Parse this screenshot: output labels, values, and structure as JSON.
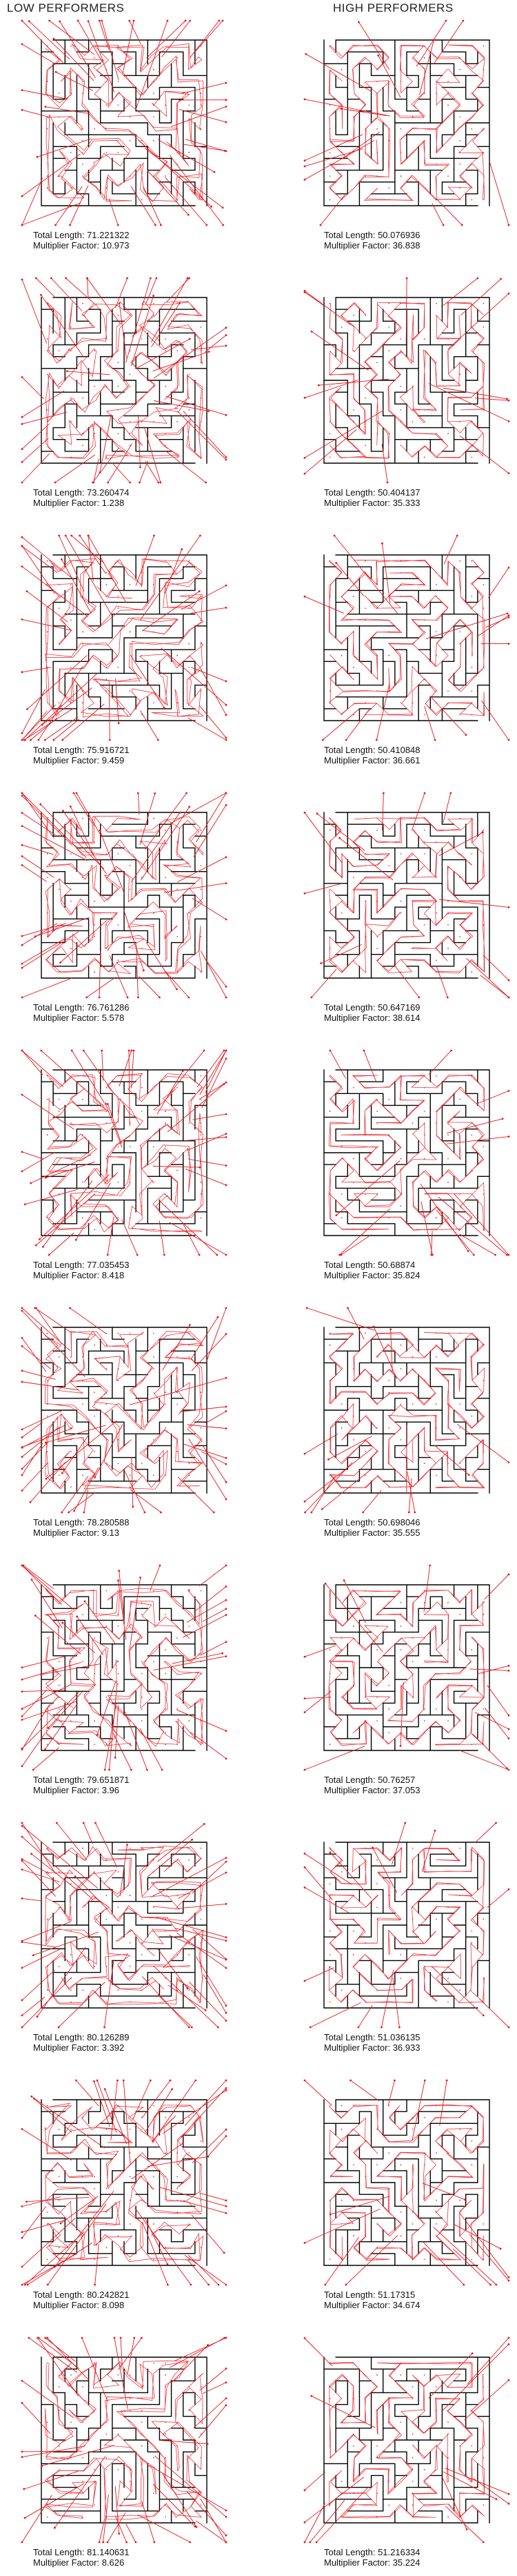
{
  "headers": {
    "low": "LOW PERFORMERS",
    "high": "HIGH PERFORMERS"
  },
  "label_prefixes": {
    "length": "Total Length: ",
    "multiplier": "Multiplier Factor: "
  },
  "colors": {
    "wall": "#000000",
    "path": "#e8141b",
    "arrow": "#e8141b"
  },
  "low_performers": [
    {
      "total_length": "71.221322",
      "multiplier_factor": "10.973"
    },
    {
      "total_length": "73.260474",
      "multiplier_factor": "1.238"
    },
    {
      "total_length": "75.916721",
      "multiplier_factor": "9.459"
    },
    {
      "total_length": "76.761286",
      "multiplier_factor": "5.578"
    },
    {
      "total_length": "77.035453",
      "multiplier_factor": "8.418"
    },
    {
      "total_length": "78.280588",
      "multiplier_factor": "9.13"
    },
    {
      "total_length": "79.651871",
      "multiplier_factor": "3.96"
    },
    {
      "total_length": "80.126289",
      "multiplier_factor": "3.392"
    },
    {
      "total_length": "80.242821",
      "multiplier_factor": "8.098"
    },
    {
      "total_length": "81.140631",
      "multiplier_factor": "8.626"
    }
  ],
  "high_performers": [
    {
      "total_length": "50.076936",
      "multiplier_factor": "36.838"
    },
    {
      "total_length": "50.404137",
      "multiplier_factor": "35.333"
    },
    {
      "total_length": "50.410848",
      "multiplier_factor": "36.661"
    },
    {
      "total_length": "50.647169",
      "multiplier_factor": "38.614"
    },
    {
      "total_length": "50.68874",
      "multiplier_factor": "35.824"
    },
    {
      "total_length": "50.698046",
      "multiplier_factor": "35.555"
    },
    {
      "total_length": "50.76257",
      "multiplier_factor": "37.053"
    },
    {
      "total_length": "51.036135",
      "multiplier_factor": "36.933"
    },
    {
      "total_length": "51.17315",
      "multiplier_factor": "34.674"
    },
    {
      "total_length": "51.216334",
      "multiplier_factor": "35.224"
    }
  ]
}
